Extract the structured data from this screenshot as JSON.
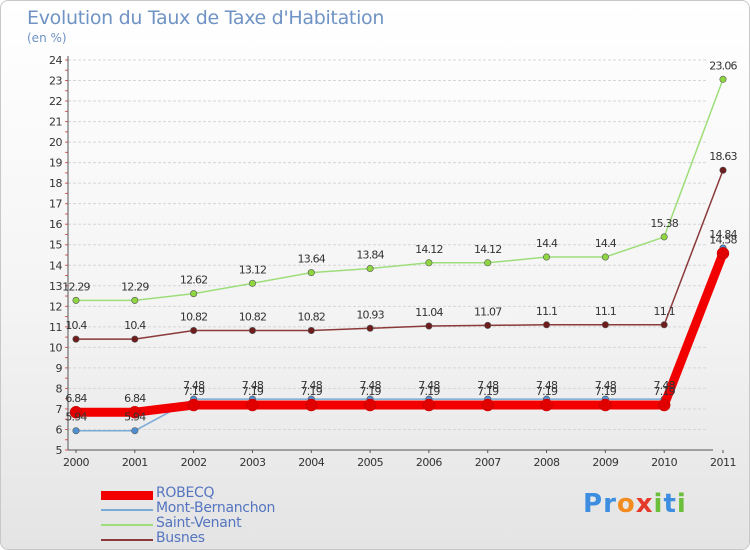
{
  "title": "Evolution du Taux de Taxe d'Habitation",
  "subtitle": "(en %)",
  "brand": {
    "name": "Proxiti",
    "letters": [
      {
        "ch": "P",
        "color": "#3d8ee0"
      },
      {
        "ch": "r",
        "color": "#3d8ee0"
      },
      {
        "ch": "o",
        "color": "#f28c1e"
      },
      {
        "ch": "x",
        "color": "#e53a2a"
      },
      {
        "ch": "i",
        "color": "#6cbf3a"
      },
      {
        "ch": "t",
        "color": "#3d8ee0"
      },
      {
        "ch": "i",
        "color": "#6cbf3a"
      }
    ]
  },
  "chart_data": {
    "type": "line",
    "x": [
      "2000",
      "2001",
      "2002",
      "2003",
      "2004",
      "2005",
      "2006",
      "2007",
      "2008",
      "2009",
      "2010",
      "2011"
    ],
    "ylim": [
      5,
      24
    ],
    "yticks": [
      "5",
      "6",
      "7",
      "8",
      "9",
      "10",
      "11",
      "12",
      "13",
      "14",
      "15",
      "16",
      "17",
      "18",
      "19",
      "20",
      "21",
      "22",
      "23",
      "24"
    ],
    "grid": "horizontal",
    "legend_position": "bottom-left",
    "series": [
      {
        "name": "Saint-Venant",
        "color": "#9ede7a",
        "marker": "#8fd640",
        "width": 1.5,
        "values": [
          12.29,
          12.29,
          12.62,
          13.12,
          13.64,
          13.84,
          14.12,
          14.12,
          14.4,
          14.4,
          15.38,
          23.06
        ],
        "labels": [
          "12.29",
          "12.29",
          "12.62",
          "13.12",
          "13.64",
          "13.84",
          "14.12",
          "14.12",
          "14.4",
          "14.4",
          "15.38",
          "23.06"
        ]
      },
      {
        "name": "Busnes",
        "color": "#8a3a3a",
        "marker": "#6e1c1c",
        "width": 1.5,
        "values": [
          10.4,
          10.4,
          10.82,
          10.82,
          10.82,
          10.93,
          11.04,
          11.07,
          11.1,
          11.1,
          11.1,
          18.63
        ],
        "labels": [
          "10.4",
          "10.4",
          "10.82",
          "10.82",
          "10.82",
          "10.93",
          "11.04",
          "11.07",
          "11.1",
          "11.1",
          "11.1",
          "18.63"
        ]
      },
      {
        "name": "Mont-Bernanchon",
        "color": "#7aaad6",
        "marker": "#4f8fd2",
        "width": 1.5,
        "values": [
          5.94,
          5.94,
          7.48,
          7.48,
          7.48,
          7.48,
          7.48,
          7.48,
          7.48,
          7.48,
          7.48,
          14.84
        ],
        "labels": [
          "5.94",
          "5.94",
          "7.48",
          "7.48",
          "7.48",
          "7.48",
          "7.48",
          "7.48",
          "7.48",
          "7.48",
          "7.48",
          "14.84"
        ]
      },
      {
        "name": "ROBECQ",
        "color": "#f20000",
        "marker": "#e00000",
        "width": 9,
        "values": [
          6.84,
          6.84,
          7.19,
          7.19,
          7.19,
          7.19,
          7.19,
          7.19,
          7.19,
          7.19,
          7.19,
          14.58
        ],
        "labels": [
          "6.84",
          "6.84",
          "7.19",
          "7.19",
          "7.19",
          "7.19",
          "7.19",
          "7.19",
          "7.19",
          "7.19",
          "7.19",
          "14.58"
        ]
      }
    ],
    "legend": [
      {
        "name": "ROBECQ",
        "color": "#f20000",
        "width": 9
      },
      {
        "name": "Mont-Bernanchon",
        "color": "#7aaad6",
        "width": 2
      },
      {
        "name": "Saint-Venant",
        "color": "#9ede7a",
        "width": 2
      },
      {
        "name": "Busnes",
        "color": "#8a3a3a",
        "width": 2
      }
    ]
  }
}
